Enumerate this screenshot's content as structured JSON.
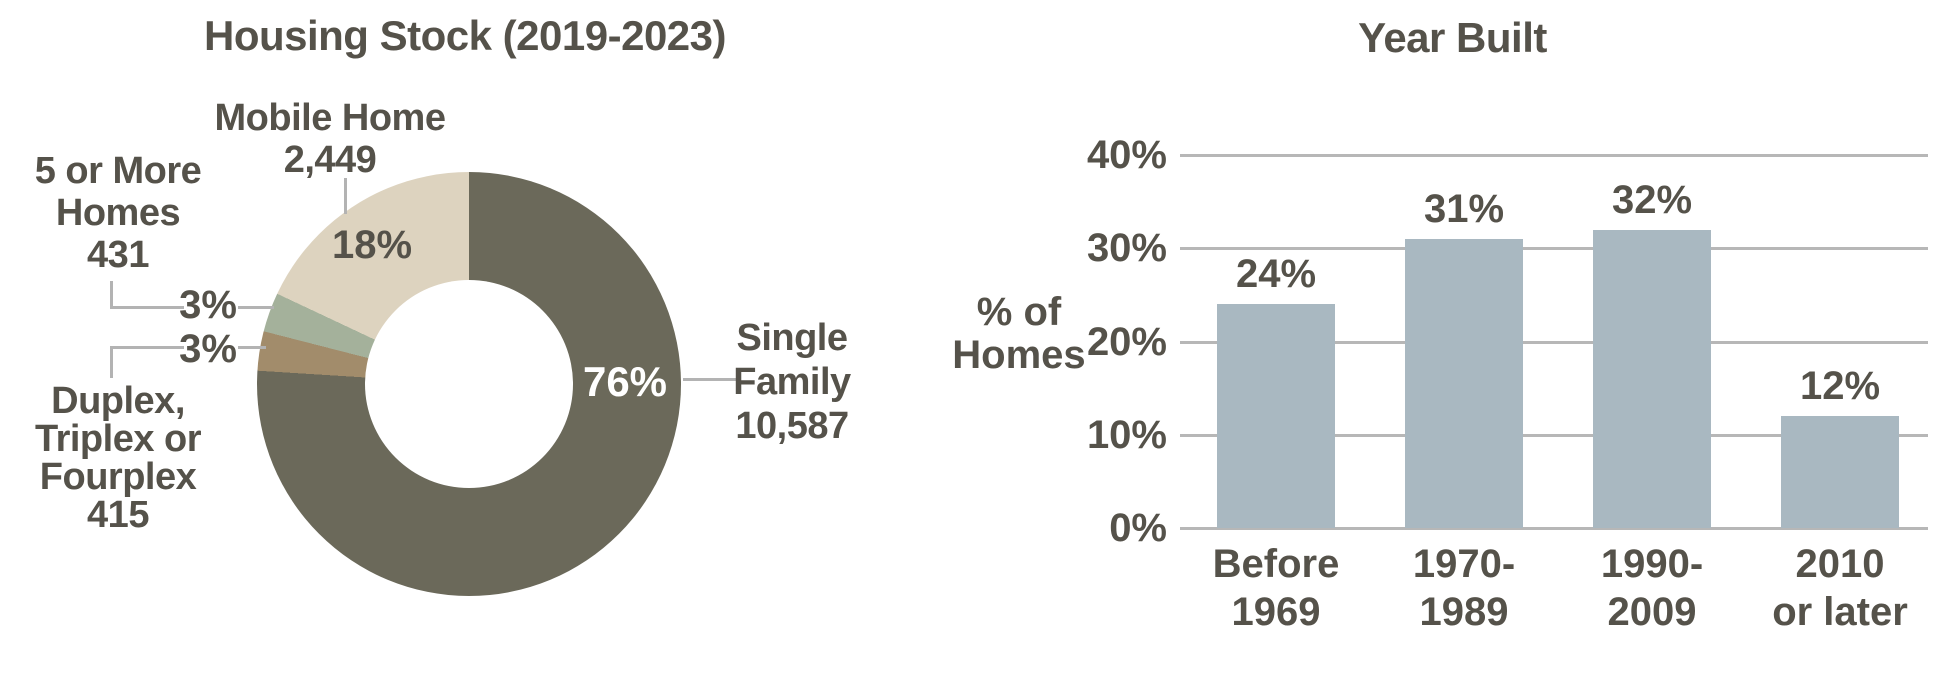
{
  "page": {
    "background": "#ffffff",
    "text_color": "#55524a",
    "line_color": "#b3b3b3",
    "gridline_color": "#b7b7b7"
  },
  "chart_data": [
    {
      "type": "pie",
      "donut": true,
      "title": "Housing Stock (2019-2023)",
      "start_angle_deg": 0,
      "direction": "clockwise",
      "legend_position": "callouts",
      "slices": [
        {
          "label": "Single Family",
          "value": 10587,
          "pct": 76,
          "pct_label": "76%",
          "count_label": "10,587",
          "color": "#6b695a",
          "display_lines": [
            "Single",
            "Family",
            "10,587"
          ]
        },
        {
          "label": "Duplex, Triplex or Fourplex",
          "value": 415,
          "pct": 3,
          "pct_label": "3%",
          "count_label": "415",
          "color": "#a28c6b",
          "display_lines": [
            "Duplex,",
            "Triplex or",
            "Fourplex",
            "415"
          ]
        },
        {
          "label": "5 or More Homes",
          "value": 431,
          "pct": 3,
          "pct_label": "3%",
          "count_label": "431",
          "color": "#a4b19b",
          "display_lines": [
            "5 or More",
            "Homes",
            "431"
          ]
        },
        {
          "label": "Mobile Home",
          "value": 2449,
          "pct": 18,
          "pct_label": "18%",
          "count_label": "2,449",
          "color": "#ddd3bf",
          "display_lines": [
            "Mobile Home",
            "2,449"
          ]
        }
      ]
    },
    {
      "type": "bar",
      "title": "Year Built",
      "categories": [
        "Before 1969",
        "1970-1989",
        "1990-2009",
        "2010 or later"
      ],
      "categories_lines": [
        [
          "Before",
          "1969"
        ],
        [
          "1970-",
          "1989"
        ],
        [
          "1990-",
          "2009"
        ],
        [
          "2010",
          "or later"
        ]
      ],
      "values": [
        24,
        31,
        32,
        12
      ],
      "value_labels": [
        "24%",
        "31%",
        "32%",
        "12%"
      ],
      "ylabel": "% of Homes",
      "ylabel_lines": [
        "% of",
        "Homes"
      ],
      "yticks": [
        40,
        30,
        20,
        10,
        0
      ],
      "ytick_labels": [
        "40%",
        "30%",
        "20%",
        "10%",
        "0%"
      ],
      "ylim": [
        0,
        40
      ],
      "grid": true,
      "bar_color": "#a9b8c1"
    }
  ]
}
